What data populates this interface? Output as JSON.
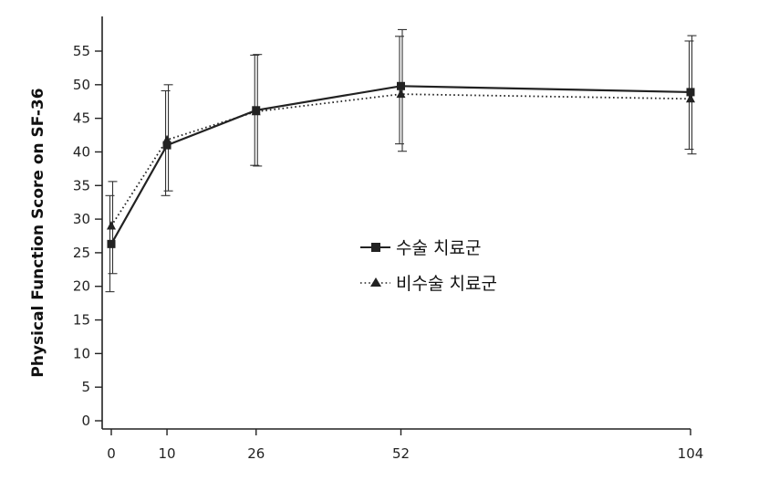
{
  "chart_data": {
    "type": "line",
    "title": "",
    "xlabel": "",
    "ylabel": "Physical Function Score on SF-36",
    "x": [
      0,
      10,
      26,
      52,
      104
    ],
    "xticks": [
      0,
      10,
      26,
      52,
      104
    ],
    "xlim": [
      0,
      104
    ],
    "yticks": [
      0,
      5,
      10,
      15,
      20,
      25,
      30,
      35,
      40,
      45,
      50,
      55
    ],
    "ylim": [
      0,
      57
    ],
    "grid": false,
    "legend_position": "center-right",
    "series": [
      {
        "name": "수술 치료군",
        "marker": "square",
        "line_style": "solid",
        "color": "#222222",
        "values": [
          26.3,
          41.0,
          46.2,
          49.8,
          48.9
        ],
        "error_low": [
          19.2,
          33.5,
          38.0,
          41.2,
          40.4
        ],
        "error_high": [
          33.5,
          49.1,
          54.4,
          57.2,
          56.5
        ]
      },
      {
        "name": "비수술 치료군",
        "marker": "triangle",
        "line_style": "dotted",
        "color": "#222222",
        "values": [
          29.0,
          41.8,
          46.0,
          48.6,
          47.9
        ],
        "error_low": [
          21.9,
          34.2,
          37.9,
          40.1,
          39.7
        ],
        "error_high": [
          35.6,
          50.0,
          54.5,
          58.2,
          57.3
        ]
      }
    ]
  }
}
